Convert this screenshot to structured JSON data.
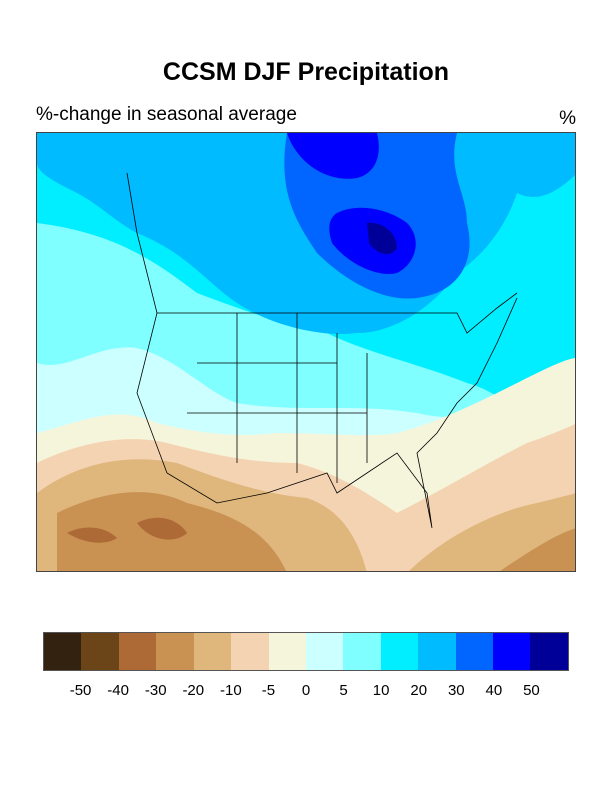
{
  "title": "CCSM DJF Precipitation",
  "subtitle": "%-change in seasonal average",
  "units": "%",
  "colorbar": {
    "colors": [
      "#332210",
      "#6b4518",
      "#ad6a36",
      "#c99252",
      "#dfb67c",
      "#f4d3b2",
      "#f5f5dc",
      "#ccffff",
      "#7fffff",
      "#00eeff",
      "#00bbff",
      "#0066ff",
      "#0000ff",
      "#000099"
    ],
    "labels": [
      "-50",
      "-40",
      "-30",
      "-20",
      "-10",
      "-5",
      "0",
      "5",
      "10",
      "20",
      "30",
      "40",
      "50"
    ]
  }
}
